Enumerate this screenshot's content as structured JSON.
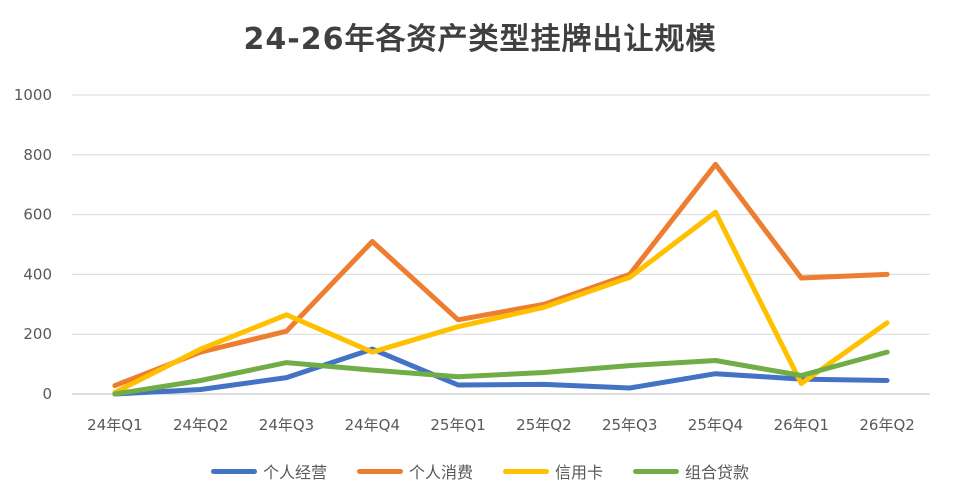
{
  "chart_data": {
    "type": "line",
    "title": "24-26年各资产类型挂牌出让规模",
    "xlabel": "",
    "ylabel": "",
    "categories": [
      "24年Q1",
      "24年Q2",
      "24年Q3",
      "24年Q4",
      "25年Q1",
      "25年Q2",
      "25年Q3",
      "25年Q4",
      "26年Q1",
      "26年Q2"
    ],
    "ylim": [
      0,
      1000
    ],
    "yticks": [
      0,
      200,
      400,
      600,
      800,
      1000
    ],
    "grid": true,
    "legend_position": "bottom",
    "series": [
      {
        "name": "个人经营",
        "color": "#4472C4",
        "values": [
          0,
          15,
          55,
          150,
          30,
          32,
          20,
          68,
          50,
          45
        ]
      },
      {
        "name": "个人消费",
        "color": "#ED7D31",
        "values": [
          28,
          140,
          210,
          510,
          248,
          300,
          400,
          768,
          388,
          400
        ]
      },
      {
        "name": "信用卡",
        "color": "#FFC000",
        "values": [
          5,
          150,
          265,
          140,
          225,
          290,
          390,
          608,
          35,
          238
        ]
      },
      {
        "name": "组合贷款",
        "color": "#70AD47",
        "values": [
          0,
          45,
          105,
          80,
          58,
          72,
          95,
          112,
          62,
          140
        ]
      }
    ]
  }
}
